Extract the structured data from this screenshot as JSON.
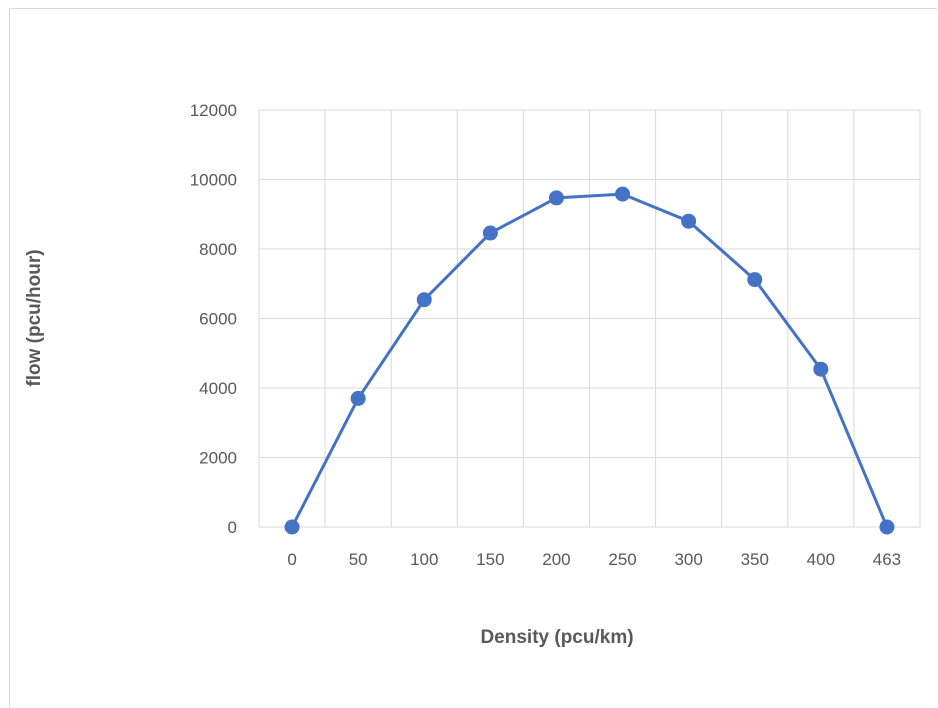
{
  "chart_data": {
    "type": "line",
    "title": "",
    "xlabel": "Density (pcu/km)",
    "ylabel": "flow (pcu/hour)",
    "categories": [
      "0",
      "50",
      "100",
      "150",
      "200",
      "250",
      "300",
      "350",
      "400",
      "463"
    ],
    "series": [
      {
        "values": [
          0,
          3700,
          6540,
          8460,
          9470,
          9580,
          8800,
          7120,
          4540,
          0
        ]
      }
    ],
    "ylim": [
      0,
      12000
    ],
    "yticks": [
      0,
      2000,
      4000,
      6000,
      8000,
      10000,
      12000
    ],
    "grid": true,
    "legend": "none",
    "colors": {
      "line": "#4472c4",
      "marker": "#4472c4",
      "grid": "#d9d9d9"
    }
  }
}
